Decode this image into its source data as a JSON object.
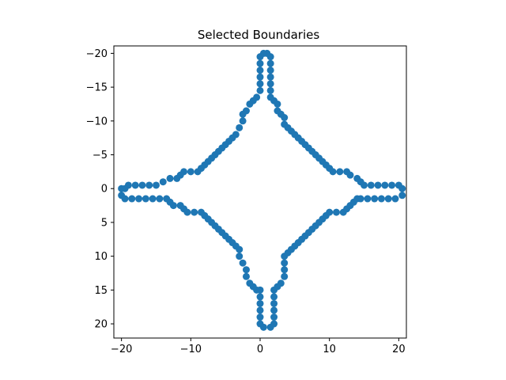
{
  "chart_data": {
    "type": "scatter",
    "title": "Selected Boundaries",
    "xlabel": "",
    "ylabel": "",
    "xlim": [
      -21.1,
      21.1
    ],
    "ylim": [
      22.1,
      -21.1
    ],
    "y_inverted": true,
    "grid": false,
    "aspect": "equal",
    "marker_color": "#1f77b4",
    "xticks": [
      -20,
      -10,
      0,
      10,
      20
    ],
    "xtick_labels": [
      "−20",
      "−10",
      "0",
      "10",
      "20"
    ],
    "yticks": [
      -20,
      -15,
      -10,
      -5,
      0,
      5,
      10,
      15,
      20
    ],
    "ytick_labels": [
      "−20",
      "−15",
      "−10",
      "−5",
      "0",
      "5",
      "10",
      "15",
      "20"
    ],
    "series": [
      {
        "points": [
          [
            0,
            -19.5
          ],
          [
            0,
            -18.5
          ],
          [
            0,
            -17.5
          ],
          [
            0,
            -16.5
          ],
          [
            0,
            -15.5
          ],
          [
            0,
            -14.5
          ],
          [
            -0.5,
            -13.5
          ],
          [
            -1,
            -13
          ],
          [
            -1.5,
            -12.5
          ],
          [
            -2,
            -11.5
          ],
          [
            -2.5,
            -11
          ],
          [
            -2.5,
            -10
          ],
          [
            -3,
            -9
          ],
          [
            -3.5,
            -8
          ],
          [
            -4,
            -7.5
          ],
          [
            -4.5,
            -7
          ],
          [
            -5,
            -6.5
          ],
          [
            -5.5,
            -6
          ],
          [
            -6,
            -5.5
          ],
          [
            -6.5,
            -5
          ],
          [
            -7,
            -4.5
          ],
          [
            -7.5,
            -4
          ],
          [
            -8,
            -3.5
          ],
          [
            -8.5,
            -3
          ],
          [
            -9,
            -2.5
          ],
          [
            -10,
            -2.5
          ],
          [
            -11,
            -2.5
          ],
          [
            -11.5,
            -2
          ],
          [
            -12,
            -1.5
          ],
          [
            -13,
            -1.5
          ],
          [
            -14,
            -1
          ],
          [
            -15,
            -0.5
          ],
          [
            -16,
            -0.5
          ],
          [
            -17,
            -0.5
          ],
          [
            -18,
            -0.5
          ],
          [
            -19,
            -0.5
          ],
          [
            -19.5,
            0
          ],
          [
            -20,
            0
          ],
          [
            -20,
            1
          ],
          [
            -19.5,
            1.5
          ],
          [
            -18.5,
            1.5
          ],
          [
            -17.5,
            1.5
          ],
          [
            -16.5,
            1.5
          ],
          [
            -15.5,
            1.5
          ],
          [
            -14.5,
            1.5
          ],
          [
            -13.5,
            1.5
          ],
          [
            -13,
            2
          ],
          [
            -12.5,
            2.5
          ],
          [
            -11.5,
            2.5
          ],
          [
            -11,
            3
          ],
          [
            -10.5,
            3.5
          ],
          [
            -9.5,
            3.5
          ],
          [
            -8.5,
            3.5
          ],
          [
            -8,
            4
          ],
          [
            -7.5,
            4.5
          ],
          [
            -7,
            5
          ],
          [
            -6.5,
            5.5
          ],
          [
            -6,
            6
          ],
          [
            -5.5,
            6.5
          ],
          [
            -5,
            7
          ],
          [
            -4.5,
            7.5
          ],
          [
            -4,
            8
          ],
          [
            -3.5,
            8.5
          ],
          [
            -3,
            9
          ],
          [
            -3,
            10
          ],
          [
            -2.5,
            11
          ],
          [
            -2,
            12
          ],
          [
            -2,
            13
          ],
          [
            -1.5,
            14
          ],
          [
            -1,
            14.5
          ],
          [
            -0.5,
            15
          ],
          [
            0,
            15
          ],
          [
            0,
            16
          ],
          [
            0,
            17
          ],
          [
            0,
            18
          ],
          [
            0,
            19
          ],
          [
            0,
            20
          ],
          [
            0.5,
            20.5
          ],
          [
            1.5,
            20.5
          ],
          [
            2,
            20
          ],
          [
            2,
            19
          ],
          [
            2,
            18
          ],
          [
            2,
            17
          ],
          [
            2,
            16
          ],
          [
            2,
            15
          ],
          [
            2.5,
            14.5
          ],
          [
            3,
            14
          ],
          [
            3.5,
            13
          ],
          [
            3.5,
            12
          ],
          [
            3.5,
            11
          ],
          [
            3.5,
            10
          ],
          [
            4,
            9.5
          ],
          [
            4.5,
            9
          ],
          [
            5,
            8.5
          ],
          [
            5.5,
            8
          ],
          [
            6,
            7.5
          ],
          [
            6.5,
            7
          ],
          [
            7,
            6.5
          ],
          [
            7.5,
            6
          ],
          [
            8,
            5.5
          ],
          [
            8.5,
            5
          ],
          [
            9,
            4.5
          ],
          [
            9.5,
            4
          ],
          [
            10,
            3.5
          ],
          [
            11,
            3.5
          ],
          [
            12,
            3.5
          ],
          [
            12.5,
            3
          ],
          [
            13,
            2.5
          ],
          [
            13.5,
            2
          ],
          [
            14,
            1.5
          ],
          [
            14.5,
            1.5
          ],
          [
            15.5,
            1.5
          ],
          [
            16.5,
            1.5
          ],
          [
            17.5,
            1.5
          ],
          [
            18.5,
            1.5
          ],
          [
            19.5,
            1.5
          ],
          [
            20.5,
            1
          ],
          [
            20.5,
            0
          ],
          [
            20,
            -0.5
          ],
          [
            19,
            -0.5
          ],
          [
            18,
            -0.5
          ],
          [
            17,
            -0.5
          ],
          [
            16,
            -0.5
          ],
          [
            15,
            -0.5
          ],
          [
            14.5,
            -1
          ],
          [
            14,
            -1.5
          ],
          [
            13,
            -2
          ],
          [
            12.5,
            -2.5
          ],
          [
            11.5,
            -2.5
          ],
          [
            10.5,
            -2.5
          ],
          [
            10,
            -3
          ],
          [
            9.5,
            -3.5
          ],
          [
            9,
            -4
          ],
          [
            8.5,
            -4.5
          ],
          [
            8,
            -5
          ],
          [
            7.5,
            -5.5
          ],
          [
            7,
            -6
          ],
          [
            6.5,
            -6.5
          ],
          [
            6,
            -7
          ],
          [
            5.5,
            -7.5
          ],
          [
            5,
            -8
          ],
          [
            4.5,
            -8.5
          ],
          [
            4,
            -9
          ],
          [
            3.5,
            -9.5
          ],
          [
            3.5,
            -10.5
          ],
          [
            3,
            -11
          ],
          [
            2.5,
            -11.5
          ],
          [
            2.5,
            -12.5
          ],
          [
            2,
            -13
          ],
          [
            1.5,
            -13.5
          ],
          [
            1.5,
            -14.5
          ],
          [
            1.5,
            -15.5
          ],
          [
            1.5,
            -16.5
          ],
          [
            1.5,
            -17.5
          ],
          [
            1.5,
            -18.5
          ],
          [
            1.5,
            -19.5
          ],
          [
            1,
            -20
          ],
          [
            0.5,
            -20
          ]
        ]
      }
    ]
  }
}
